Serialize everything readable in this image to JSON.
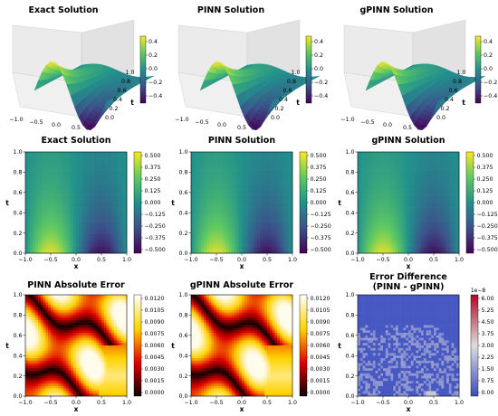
{
  "figure": {
    "panel_titles": [
      "Exact Solution",
      "PINN Solution",
      "gPINN Solution",
      "Exact Solution",
      "PINN Solution",
      "gPINN Solution",
      "PINN Absolute Error",
      "gPINN Absolute Error",
      "Error Difference",
      "(PINN - gPINN)"
    ]
  },
  "chart_data": [
    {
      "type": "surface3d",
      "title": "Exact Solution",
      "x_ticks": [
        "−1.0",
        "−0.5",
        "0.0",
        "0.5"
      ],
      "t_ticks": [
        "0.0",
        "0.2",
        "0.4",
        "0.6",
        "0.8",
        "1.0"
      ],
      "xlabel": "",
      "tlabel": "t",
      "colorbar": {
        "ticks": [
          "0.4",
          "0.2",
          "0.0",
          "−0.2",
          "−0.4"
        ],
        "range": [
          -0.5,
          0.5
        ],
        "cmap": "viridis"
      }
    },
    {
      "type": "surface3d",
      "title": "PINN Solution",
      "x_ticks": [
        "−1.0",
        "−0.5",
        "0.0",
        "0.5"
      ],
      "t_ticks": [
        "0.0",
        "0.2",
        "0.4",
        "0.6",
        "0.8",
        "1.0"
      ],
      "xlabel": "",
      "tlabel": "t",
      "colorbar": {
        "ticks": [
          "0.4",
          "0.2",
          "0.0",
          "−0.2",
          "−0.4"
        ],
        "range": [
          -0.5,
          0.5
        ],
        "cmap": "viridis"
      }
    },
    {
      "type": "surface3d",
      "title": "gPINN Solution",
      "x_ticks": [
        "−1.0",
        "−0.5",
        "0.0",
        "0.5"
      ],
      "t_ticks": [
        "0.0",
        "0.2",
        "0.4",
        "0.6",
        "0.8",
        "1.0"
      ],
      "xlabel": "",
      "tlabel": "t",
      "colorbar": {
        "ticks": [
          "0.4",
          "0.2",
          "0.0",
          "−0.2",
          "−0.4"
        ],
        "range": [
          -0.5,
          0.5
        ],
        "cmap": "viridis"
      }
    },
    {
      "type": "heatmap",
      "title": "Exact Solution",
      "cmap": "viridis",
      "xlabel": "x",
      "ylabel": "t",
      "xlim": [
        -1,
        1
      ],
      "ylim": [
        0,
        1
      ],
      "x_ticks": [
        "−1.0",
        "−0.5",
        "0.0",
        "0.5",
        "1.0"
      ],
      "y_ticks": [
        "0.0",
        "0.2",
        "0.4",
        "0.6",
        "0.8",
        "1.0"
      ],
      "colorbar": {
        "ticks": [
          "0.500",
          "0.375",
          "0.250",
          "0.125",
          "0.000",
          "−0.125",
          "−0.250",
          "−0.375",
          "−0.500"
        ],
        "range": [
          -0.55,
          0.55
        ]
      }
    },
    {
      "type": "heatmap",
      "title": "PINN Solution",
      "cmap": "viridis",
      "xlabel": "x",
      "ylabel": "t",
      "xlim": [
        -1,
        1
      ],
      "ylim": [
        0,
        1
      ],
      "x_ticks": [
        "−1.0",
        "−0.5",
        "0.0",
        "0.5",
        "1.0"
      ],
      "y_ticks": [
        "0.0",
        "0.2",
        "0.4",
        "0.6",
        "0.8",
        "1.0"
      ],
      "colorbar": {
        "ticks": [
          "0.500",
          "0.375",
          "0.250",
          "0.125",
          "0.000",
          "−0.125",
          "−0.250",
          "−0.375",
          "−0.500"
        ],
        "range": [
          -0.55,
          0.55
        ]
      }
    },
    {
      "type": "heatmap",
      "title": "gPINN Solution",
      "cmap": "viridis",
      "xlabel": "x",
      "ylabel": "t",
      "xlim": [
        -1,
        1
      ],
      "ylim": [
        0,
        1
      ],
      "x_ticks": [
        "−1.0",
        "−0.5",
        "0.0",
        "0.5",
        "1.0"
      ],
      "y_ticks": [
        "0.0",
        "0.2",
        "0.4",
        "0.6",
        "0.8",
        "1.0"
      ],
      "colorbar": {
        "ticks": [
          "0.500",
          "0.375",
          "0.250",
          "0.125",
          "0.000",
          "−0.125",
          "−0.250",
          "−0.375",
          "−0.500"
        ],
        "range": [
          -0.55,
          0.55
        ]
      }
    },
    {
      "type": "heatmap",
      "title": "PINN Absolute Error",
      "cmap": "hot",
      "xlabel": "x",
      "ylabel": "t",
      "xlim": [
        -1,
        1
      ],
      "ylim": [
        0,
        1
      ],
      "x_ticks": [
        "−1.0",
        "−0.5",
        "0.0",
        "0.5",
        "1.0"
      ],
      "y_ticks": [
        "0.0",
        "0.2",
        "0.4",
        "0.6",
        "0.8",
        "1.0"
      ],
      "colorbar": {
        "ticks": [
          "0.0120",
          "0.0105",
          "0.0090",
          "0.0075",
          "0.0060",
          "0.0045",
          "0.0030",
          "0.0015",
          "0.0000"
        ],
        "range": [
          0,
          0.0128
        ]
      }
    },
    {
      "type": "heatmap",
      "title": "gPINN Absolute Error",
      "cmap": "hot",
      "xlabel": "x",
      "ylabel": "t",
      "xlim": [
        -1,
        1
      ],
      "ylim": [
        0,
        1
      ],
      "x_ticks": [
        "−1.0",
        "−0.5",
        "0.0",
        "0.5",
        "1.0"
      ],
      "y_ticks": [
        "0.0",
        "0.2",
        "0.4",
        "0.6",
        "0.8",
        "1.0"
      ],
      "colorbar": {
        "ticks": [
          "0.0120",
          "0.0105",
          "0.0090",
          "0.0075",
          "0.0060",
          "0.0045",
          "0.0030",
          "0.0015",
          "0.0000"
        ],
        "range": [
          0,
          0.0128
        ]
      }
    },
    {
      "type": "heatmap",
      "title": "Error Difference (PINN - gPINN)",
      "cmap": "coolwarm",
      "xlabel": "x",
      "ylabel": "t",
      "xlim": [
        -1,
        1
      ],
      "ylim": [
        0,
        1
      ],
      "x_ticks": [
        "−1.0",
        "−0.5",
        "0.0",
        "0.5",
        "1.0"
      ],
      "y_ticks": [
        "0.0",
        "0.2",
        "0.4",
        "0.6",
        "0.8",
        "1.0"
      ],
      "colorbar": {
        "ticks": [
          "6.00",
          "5.25",
          "4.50",
          "3.75",
          "3.00",
          "2.25",
          "1.50",
          "0.75",
          "0.00"
        ],
        "range": [
          0,
          6
        ],
        "offset_text": "1e−8"
      }
    }
  ]
}
